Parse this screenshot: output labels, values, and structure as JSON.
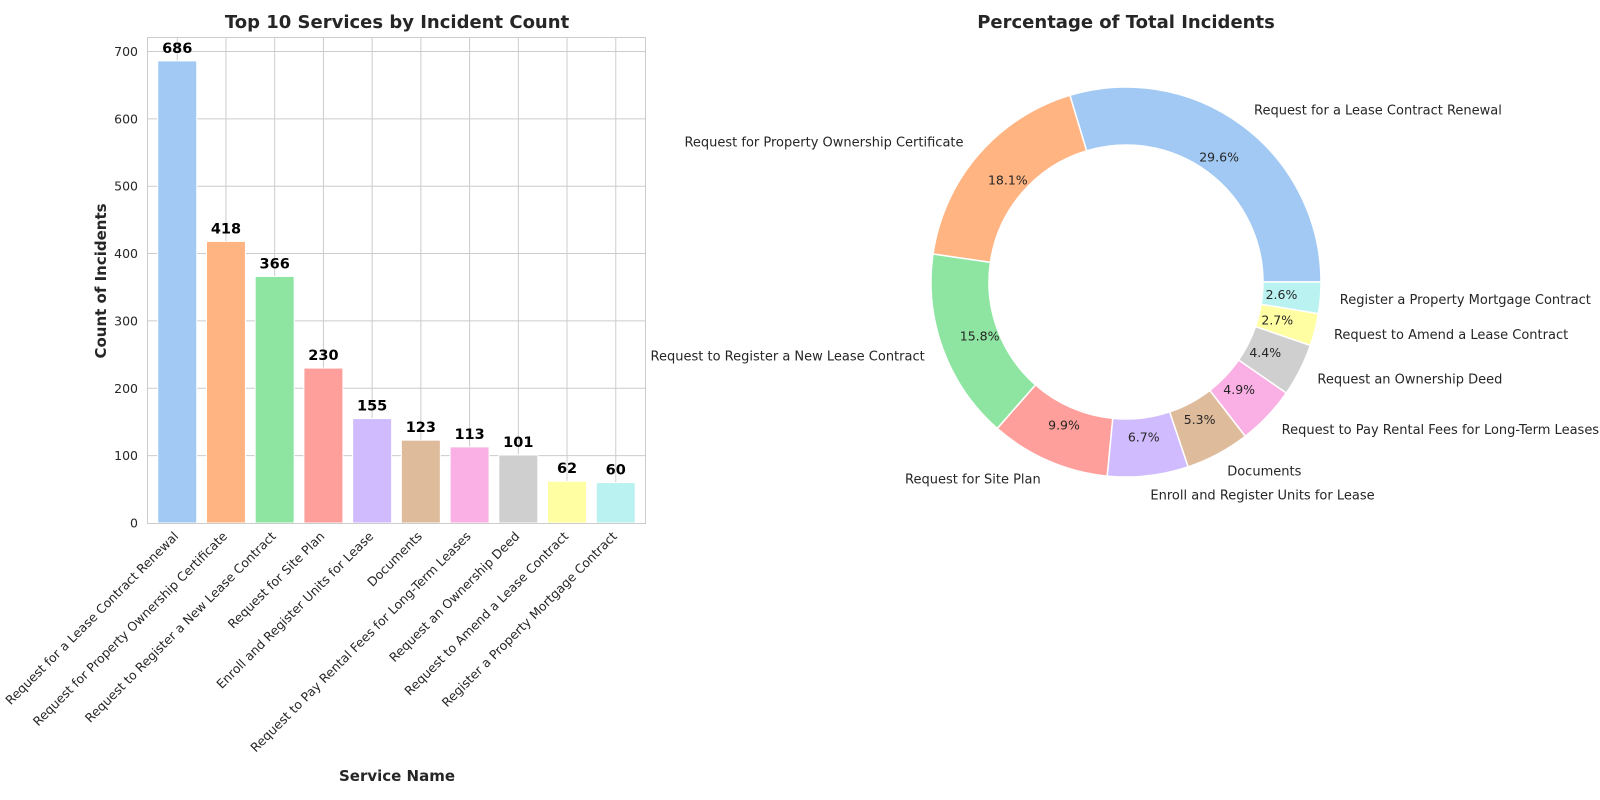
{
  "colors": [
    "#a1c9f4",
    "#ffb482",
    "#8de5a1",
    "#ff9f9b",
    "#d0bbff",
    "#debb9b",
    "#fab0e4",
    "#cfcfcf",
    "#fffea3",
    "#b9f2f0"
  ],
  "chart_data": [
    {
      "type": "bar",
      "title": "Top 10 Services by Incident Count",
      "xlabel": "Service Name",
      "ylabel": "Count of Incidents",
      "ylim": [
        0,
        720
      ],
      "yticks": [
        "0",
        "100",
        "200",
        "300",
        "400",
        "500",
        "600",
        "700"
      ],
      "grid": true,
      "categories": [
        "Request for a Lease Contract Renewal",
        "Request for Property Ownership Certificate",
        "Request to Register a New Lease Contract",
        "Request for Site Plan",
        "Enroll and Register Units for Lease",
        "Documents",
        "Request to Pay Rental Fees for Long-Term Leases",
        "Request an Ownership Deed",
        "Request to Amend a Lease Contract",
        "Register a Property Mortgage Contract"
      ],
      "values": [
        686,
        418,
        366,
        230,
        155,
        123,
        113,
        101,
        62,
        60
      ],
      "value_labels": [
        "686",
        "418",
        "366",
        "230",
        "155",
        "123",
        "113",
        "101",
        "62",
        "60"
      ]
    },
    {
      "type": "pie",
      "variant": "donut",
      "title": "Percentage of Total Incidents",
      "labels": [
        "Request for a Lease Contract Renewal",
        "Request for Property Ownership Certificate",
        "Request to Register a New Lease Contract",
        "Request for Site Plan",
        "Enroll and Register Units for Lease",
        "Documents",
        "Request to Pay Rental Fees for Long-Term Leases",
        "Request an Ownership Deed",
        "Request to Amend a Lease Contract",
        "Register a Property Mortgage Contract"
      ],
      "values": [
        686,
        418,
        366,
        230,
        155,
        123,
        113,
        101,
        62,
        60
      ],
      "percent_labels": [
        "29.6%",
        "18.1%",
        "15.8%",
        "9.9%",
        "6.7%",
        "5.3%",
        "4.9%",
        "4.4%",
        "2.7%",
        "2.6%"
      ]
    }
  ]
}
